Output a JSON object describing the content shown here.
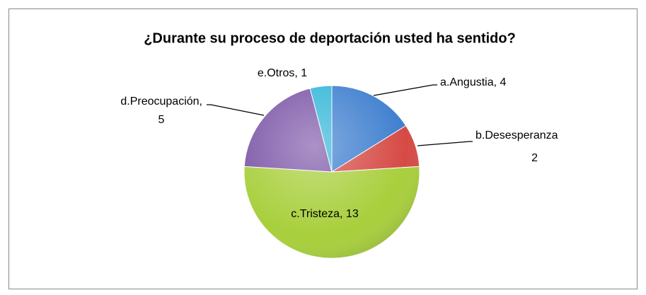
{
  "chart_data": {
    "type": "pie",
    "title": "¿Durante su proceso de deportación usted ha sentido?",
    "labels": [
      [
        "a.Angustia, 4"
      ],
      [
        "b.Desesperanza",
        "2"
      ],
      [
        "c.Tristeza, 13"
      ],
      [
        "d.Preocupación,",
        "5"
      ],
      [
        "e.Otros, 1"
      ]
    ],
    "values": [
      4,
      2,
      13,
      5,
      1
    ],
    "colors": [
      "#3f7fcf",
      "#d64a45",
      "#a8cf3c",
      "#7d57a8",
      "#33b6d8"
    ]
  }
}
